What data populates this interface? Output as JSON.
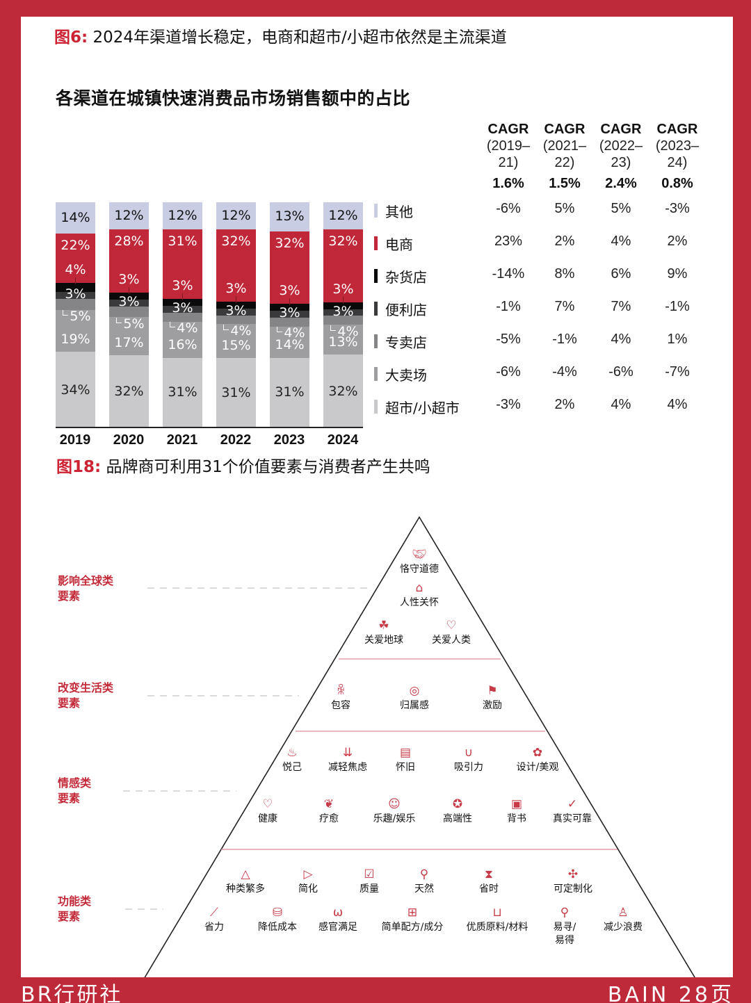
{
  "figure6": {
    "tag": "图6:",
    "title": " 2024年渠道增长稳定，电商和超市/小超市依然是主流渠道",
    "chart_title": "各渠道在城镇快速消费品市场销售额中的占比"
  },
  "chart_data": {
    "type": "bar",
    "stacked": true,
    "title": "各渠道在城镇快速消费品市场销售额中的占比",
    "xlabel": "",
    "ylabel": "",
    "ylim": [
      0,
      100
    ],
    "grid": false,
    "legend_position": "right",
    "categories": [
      "2019",
      "2020",
      "2021",
      "2022",
      "2023",
      "2024"
    ],
    "series": [
      {
        "name": "超市/小超市",
        "color": "#c9c9cb",
        "values": [
          34,
          32,
          31,
          31,
          31,
          32
        ]
      },
      {
        "name": "大卖场",
        "color": "#9e9ea1",
        "values": [
          19,
          17,
          16,
          15,
          14,
          13
        ]
      },
      {
        "name": "专卖店",
        "color": "#858588",
        "values": [
          5,
          5,
          4,
          4,
          4,
          4
        ]
      },
      {
        "name": "便利店",
        "color": "#3a3a3c",
        "values": [
          3,
          3,
          3,
          3,
          3,
          3
        ]
      },
      {
        "name": "杂货店",
        "color": "#0a0a0a",
        "values": [
          4,
          3,
          3,
          3,
          3,
          3
        ]
      },
      {
        "name": "电商",
        "color": "#c0283a",
        "values": [
          22,
          28,
          31,
          32,
          32,
          32
        ]
      },
      {
        "name": "其他",
        "color": "#c9cde3",
        "values": [
          14,
          12,
          12,
          12,
          13,
          12
        ]
      }
    ],
    "cagr_table": {
      "columns": [
        {
          "title": "CAGR",
          "period_line1": "(2019–",
          "period_line2": "21)",
          "total": "1.6%"
        },
        {
          "title": "CAGR",
          "period_line1": "(2021–",
          "period_line2": "22)",
          "total": "1.5%"
        },
        {
          "title": "CAGR",
          "period_line1": "(2022–",
          "period_line2": "23)",
          "total": "2.4%"
        },
        {
          "title": "CAGR",
          "period_line1": "(2023–",
          "period_line2": "24)",
          "total": "0.8%"
        }
      ],
      "rows": [
        {
          "channel": "其他",
          "color": "#c9cde3",
          "values": [
            "-6%",
            "5%",
            "5%",
            "-3%"
          ]
        },
        {
          "channel": "电商",
          "color": "#c0283a",
          "values": [
            "23%",
            "2%",
            "4%",
            "2%"
          ]
        },
        {
          "channel": "杂货店",
          "color": "#0a0a0a",
          "values": [
            "-14%",
            "8%",
            "6%",
            "9%"
          ]
        },
        {
          "channel": "便利店",
          "color": "#3a3a3c",
          "values": [
            "-1%",
            "7%",
            "7%",
            "-1%"
          ]
        },
        {
          "channel": "专卖店",
          "color": "#858588",
          "values": [
            "-5%",
            "-1%",
            "4%",
            "1%"
          ]
        },
        {
          "channel": "大卖场",
          "color": "#9e9ea1",
          "values": [
            "-6%",
            "-4%",
            "-6%",
            "-7%"
          ]
        },
        {
          "channel": "超市/小超市",
          "color": "#c9c9cb",
          "values": [
            "-3%",
            "2%",
            "4%",
            "4%"
          ]
        }
      ]
    }
  },
  "labels": {
    "bars": [
      {
        "year": "2019",
        "other": "14%",
        "ecom": "22%",
        "grocery": "4%",
        "convenience": "3%",
        "specialty": "5%",
        "hyper": "19%",
        "super": "34%"
      },
      {
        "year": "2020",
        "other": "12%",
        "ecom": "28%",
        "grocery": "3%",
        "convenience": "3%",
        "specialty": "5%",
        "hyper": "17%",
        "super": "32%"
      },
      {
        "year": "2021",
        "other": "12%",
        "ecom": "31%",
        "grocery": "3%",
        "convenience": "3%",
        "specialty": "4%",
        "hyper": "16%",
        "super": "31%"
      },
      {
        "year": "2022",
        "other": "12%",
        "ecom": "32%",
        "grocery": "3%",
        "convenience": "3%",
        "specialty": "4%",
        "hyper": "15%",
        "super": "31%"
      },
      {
        "year": "2023",
        "other": "13%",
        "ecom": "32%",
        "grocery": "3%",
        "convenience": "3%",
        "specialty": "4%",
        "hyper": "14%",
        "super": "31%"
      },
      {
        "year": "2024",
        "other": "12%",
        "ecom": "32%",
        "grocery": "3%",
        "convenience": "3%",
        "specialty": "4%",
        "hyper": "13%",
        "super": "32%"
      }
    ]
  },
  "figure18": {
    "tag": "图18:",
    "title": " 品牌商可利用31个价值要素与消费者产生共鸣",
    "tiers": [
      {
        "label_line1": "影响全球类",
        "label_line2": "要素"
      },
      {
        "label_line1": "改变生活类",
        "label_line2": "要素"
      },
      {
        "label_line1": "情感类",
        "label_line2": "要素"
      },
      {
        "label_line1": "功能类",
        "label_line2": "要素"
      }
    ],
    "elements": {
      "social_impact": [
        {
          "label": "恪守道德",
          "icon": "handshake-icon"
        },
        {
          "label": "人性关怀",
          "icon": "house-heart-icon"
        },
        {
          "label": "关爱地球",
          "icon": "hand-sprout-icon"
        },
        {
          "label": "关爱人类",
          "icon": "hand-heart-icon"
        }
      ],
      "life_changing": [
        {
          "label": "包容",
          "icon": "people-group-icon"
        },
        {
          "label": "归属感",
          "icon": "circle-people-icon"
        },
        {
          "label": "激励",
          "icon": "runner-podium-icon"
        }
      ],
      "emotional_row1": [
        {
          "label": "悦己",
          "icon": "cupcake-icon"
        },
        {
          "label": "减轻焦虑",
          "icon": "down-arrows-icon"
        },
        {
          "label": "怀旧",
          "icon": "typewriter-icon"
        },
        {
          "label": "吸引力",
          "icon": "magnet-icon"
        },
        {
          "label": "设计/美观",
          "icon": "palette-icon"
        }
      ],
      "emotional_row2": [
        {
          "label": "健康",
          "icon": "heartbeat-icon"
        },
        {
          "label": "疗愈",
          "icon": "leaves-icon"
        },
        {
          "label": "乐趣/娱乐",
          "icon": "smile-bubbles-icon"
        },
        {
          "label": "高端性",
          "icon": "award-ribbon-icon"
        },
        {
          "label": "背书",
          "icon": "certificate-icon"
        },
        {
          "label": "真实可靠",
          "icon": "checkmark-icon"
        }
      ],
      "functional_row1": [
        {
          "label": "种类繁多",
          "icon": "shapes-icon"
        },
        {
          "label": "简化",
          "icon": "funnel-arrow-icon"
        },
        {
          "label": "质量",
          "icon": "check-badge-icon"
        },
        {
          "label": "天然",
          "icon": "plant-hanger-icon"
        },
        {
          "label": "省时",
          "icon": "hourglass-icon"
        },
        {
          "label": "可定制化",
          "icon": "puzzle-icon"
        }
      ],
      "functional_row2": [
        {
          "label": "省力",
          "icon": "seesaw-icon"
        },
        {
          "label": "降低成本",
          "icon": "coins-icon"
        },
        {
          "label": "感官满足",
          "icon": "nose-icon"
        },
        {
          "label": "简单配方/成分",
          "icon": "grid-icon"
        },
        {
          "label": "优质原料/材料",
          "icon": "basket-icon"
        },
        {
          "label": "易寻/易得",
          "icon": "magnifier-icon"
        },
        {
          "label": "减少浪费",
          "icon": "sack-icon"
        }
      ]
    }
  },
  "footer": {
    "left": "BR行研社",
    "right": "BAIN 28页"
  }
}
